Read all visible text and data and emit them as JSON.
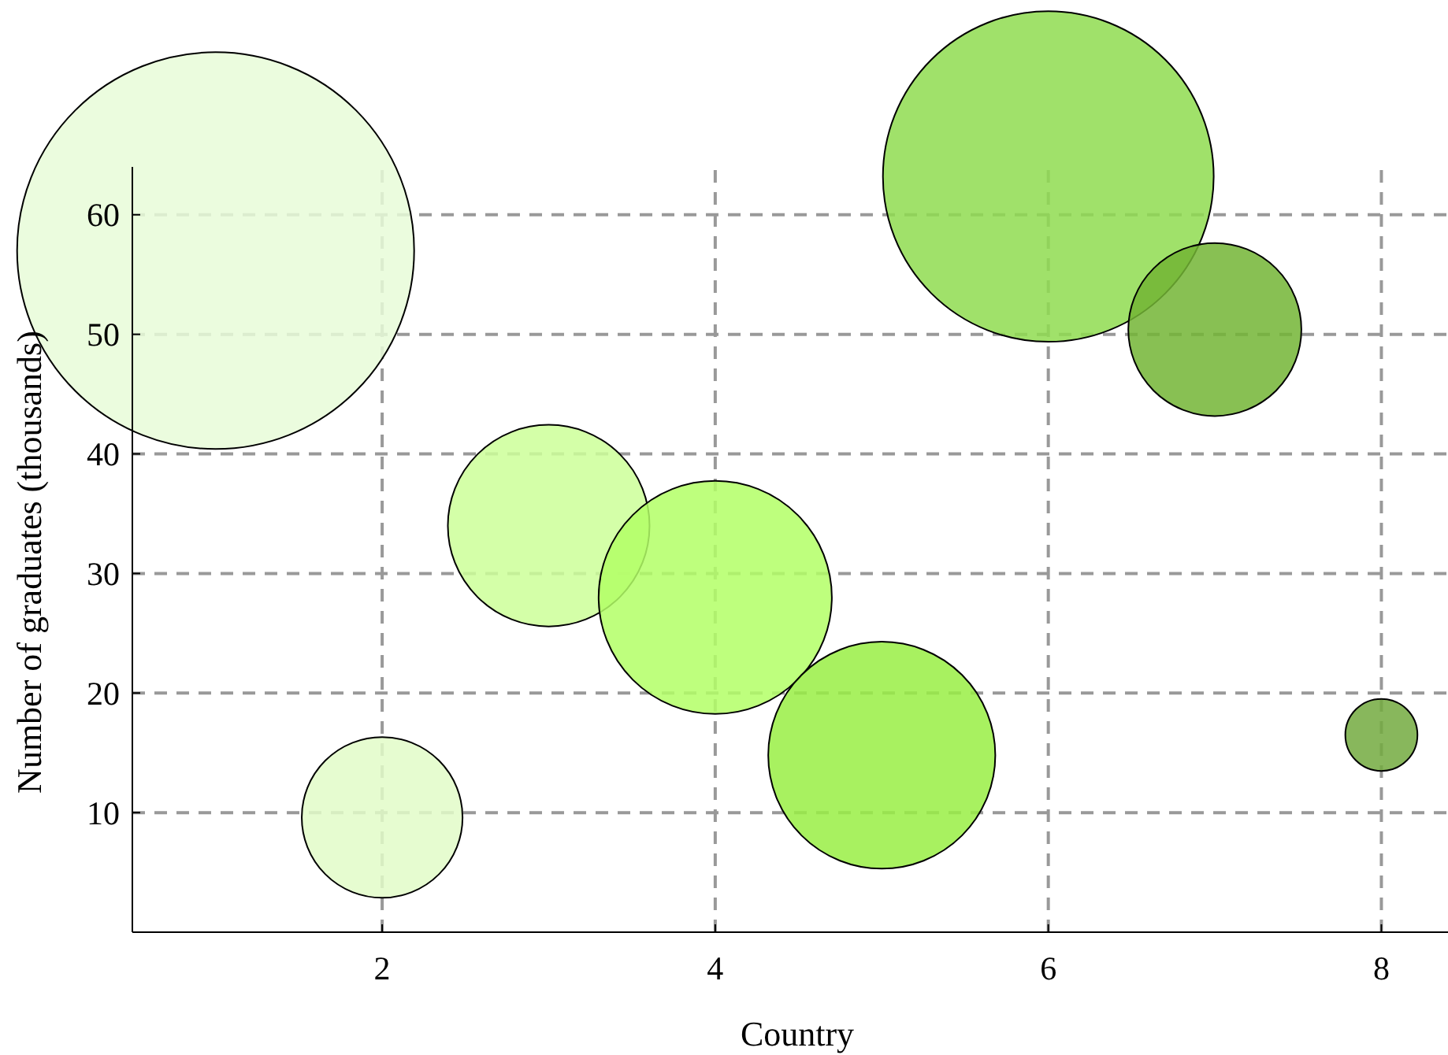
{
  "chart_data": {
    "type": "bubble",
    "xlabel": "Country",
    "ylabel": "Number of graduates (thousands)",
    "x": [
      1,
      2,
      3,
      4,
      5,
      6,
      7,
      8
    ],
    "values": [
      57.0,
      9.6,
      34.0,
      28.0,
      14.8,
      63.2,
      50.4,
      16.5
    ],
    "sizes": [
      1,
      0.164,
      0.258,
      0.345,
      0.327,
      0.694,
      0.19,
      0.033
    ],
    "colors": [
      "#e8fcd8",
      "#e2fcc8",
      "#ccff99",
      "#b3ff66",
      "#99ee44",
      "#8fdc50",
      "#73b535",
      "#73aa40"
    ],
    "xlim": [
      0.5,
      8.4
    ],
    "ylim": [
      0,
      64
    ],
    "xticks": [
      2,
      4,
      6,
      8
    ],
    "yticks": [
      10,
      20,
      30,
      40,
      50,
      60
    ],
    "grid": true
  }
}
